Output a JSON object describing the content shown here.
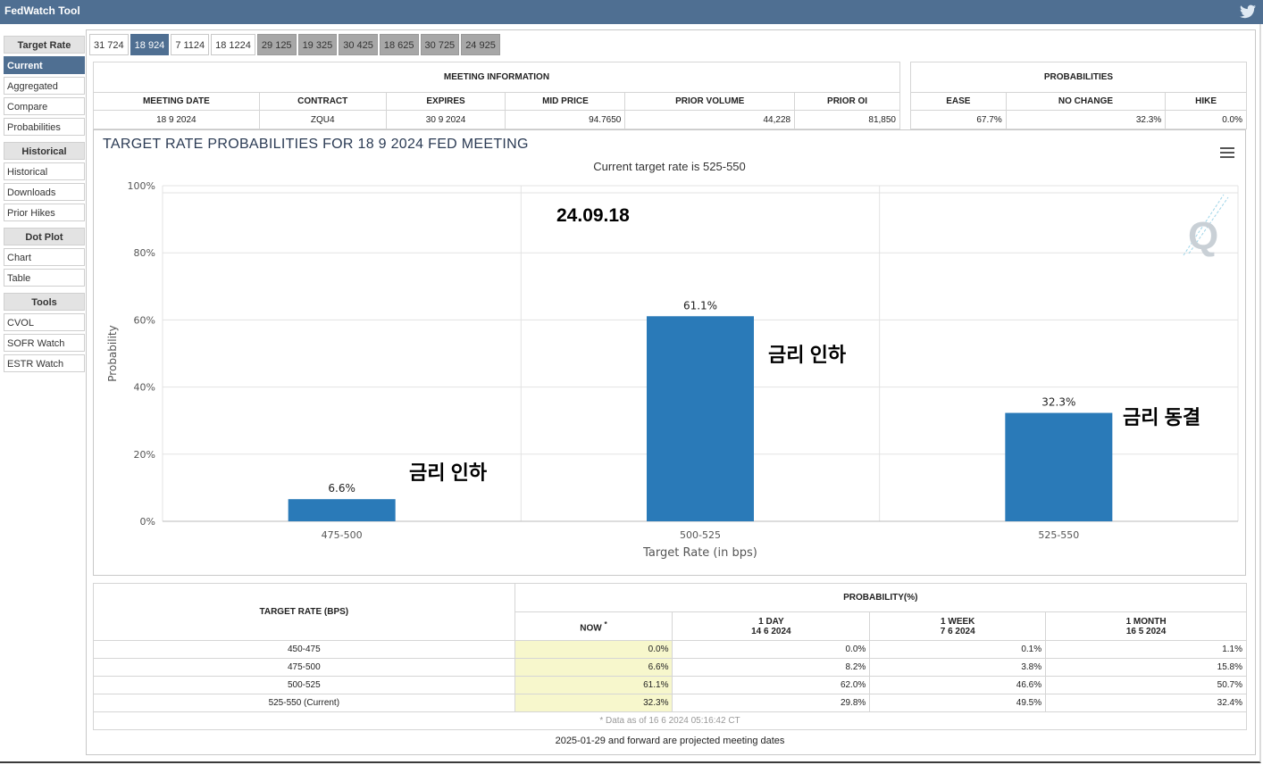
{
  "app": {
    "title": "FedWatch Tool"
  },
  "sidebar": {
    "sections": [
      {
        "heading": "Target Rate",
        "items": [
          "Current",
          "Aggregated",
          "Compare",
          "Probabilities"
        ]
      },
      {
        "heading": "Historical",
        "items": [
          "Historical",
          "Downloads",
          "Prior Hikes"
        ]
      },
      {
        "heading": "Dot Plot",
        "items": [
          "Chart",
          "Table"
        ]
      },
      {
        "heading": "Tools",
        "items": [
          "CVOL",
          "SOFR Watch",
          "ESTR Watch"
        ]
      }
    ],
    "active_item": "Current"
  },
  "tabs": [
    "31 724",
    "18 924",
    "7 1124",
    "18 1224",
    "29 125",
    "19 325",
    "30 425",
    "18 625",
    "30 725",
    "24 925"
  ],
  "selected_tab": "18 924",
  "meeting_info": {
    "heading": "MEETING INFORMATION",
    "columns": [
      "MEETING DATE",
      "CONTRACT",
      "EXPIRES",
      "MID PRICE",
      "PRIOR VOLUME",
      "PRIOR OI"
    ],
    "values": [
      "18 9 2024",
      "ZQU4",
      "30 9 2024",
      "94.7650",
      "44,228",
      "81,850"
    ]
  },
  "probabilities": {
    "heading": "PROBABILITIES",
    "columns": [
      "EASE",
      "NO CHANGE",
      "HIKE"
    ],
    "values": [
      "67.7%",
      "32.3%",
      "0.0%"
    ]
  },
  "chart": {
    "title": "TARGET RATE PROBABILITIES FOR 18 9 2024 FED MEETING",
    "subtitle": "Current target rate is 525-550",
    "watermark": "Q"
  },
  "chart_data": {
    "type": "bar",
    "categories": [
      "475-500",
      "500-525",
      "525-550"
    ],
    "values": [
      6.6,
      61.1,
      32.3
    ],
    "data_labels": [
      "6.6%",
      "61.1%",
      "32.3%"
    ],
    "xlabel": "Target Rate (in bps)",
    "ylabel": "Probability",
    "ylim": [
      0,
      100
    ],
    "yticks": [
      "0%",
      "20%",
      "40%",
      "60%",
      "80%",
      "100%"
    ],
    "bar_color": "#2a7ab8",
    "grid": true
  },
  "annotations": {
    "date": "24.09.18",
    "label_cut": "금리 인하",
    "label_cut2": "금리 인하",
    "label_hold": "금리 동결"
  },
  "prob_table": {
    "rate_header": "TARGET RATE (BPS)",
    "prob_header": "PROBABILITY(%)",
    "col_now": "NOW",
    "col_now_mark": "*",
    "col_1day": "1 DAY",
    "col_1day_date": "14 6 2024",
    "col_1week": "1 WEEK",
    "col_1week_date": "7 6 2024",
    "col_1month": "1 MONTH",
    "col_1month_date": "16 5 2024",
    "rows": [
      {
        "rate": "450-475",
        "now": "0.0%",
        "day": "0.0%",
        "week": "0.1%",
        "month": "1.1%"
      },
      {
        "rate": "475-500",
        "now": "6.6%",
        "day": "8.2%",
        "week": "3.8%",
        "month": "15.8%"
      },
      {
        "rate": "500-525",
        "now": "61.1%",
        "day": "62.0%",
        "week": "46.6%",
        "month": "50.7%"
      },
      {
        "rate": "525-550 (Current)",
        "now": "32.3%",
        "day": "29.8%",
        "week": "49.5%",
        "month": "32.4%"
      }
    ],
    "footnote": "* Data as of 16 6 2024 05:16:42 CT"
  },
  "bottom_note": "2025-01-29 and forward are projected meeting dates"
}
